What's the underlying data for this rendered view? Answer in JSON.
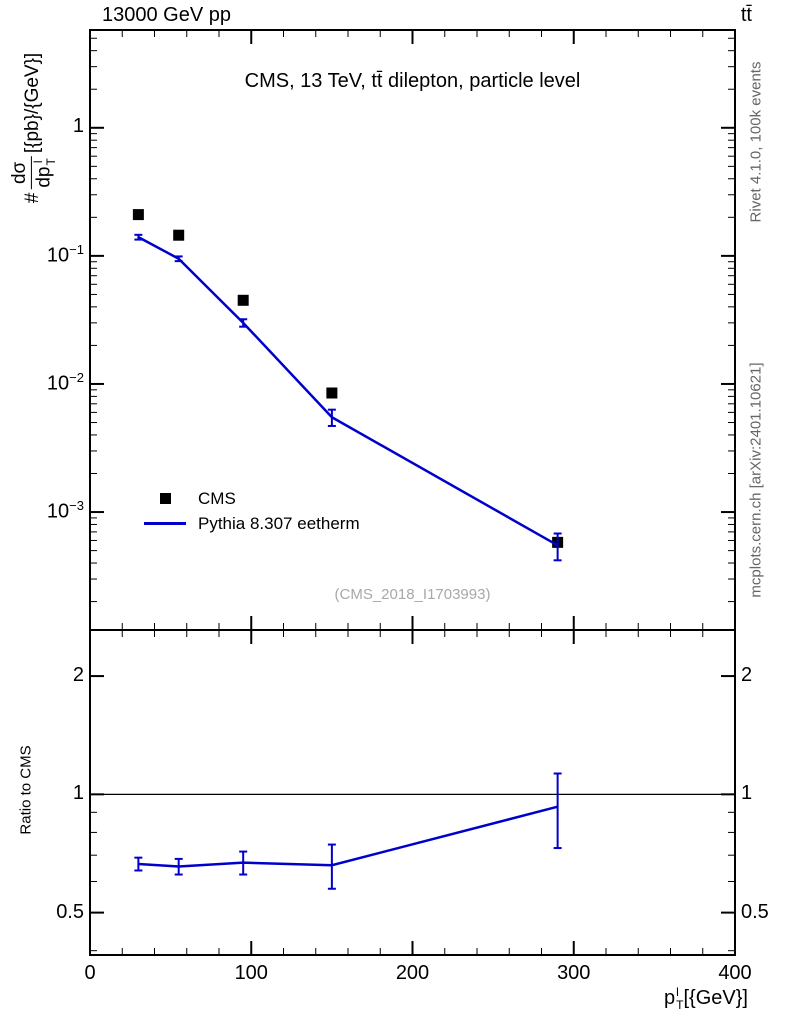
{
  "header": {
    "left": "13000 GeV pp",
    "right": "tt̄"
  },
  "title": "CMS, 13 TeV, tt̄ dilepton, particle level",
  "watermark": "(CMS_2018_I1703993)",
  "side_notes": {
    "top_right": "Rivet 4.1.0, 100k events",
    "bottom_right": "mcplots.cern.ch [arXiv:2401.10621]"
  },
  "axes": {
    "y_label": {
      "prefix": "#",
      "numerator": "dσ",
      "denominator_base": "dp",
      "denominator_sup": "l",
      "denominator_sub": "T",
      "units": "[{pb}/{GeV}]"
    },
    "x_label": {
      "base": "p",
      "sup": "l",
      "sub": "T",
      "units": "[{GeV}]"
    },
    "ratio_label": "Ratio to CMS"
  },
  "legend": [
    {
      "label": "CMS",
      "marker": "square",
      "color": "#000000"
    },
    {
      "label": "Pythia 8.307 eetherm",
      "marker": "line",
      "color": "#0000cc"
    }
  ],
  "chart_data": {
    "type": "line",
    "title": "CMS, 13 TeV, ttbar dilepton, particle level",
    "xlabel": "p_T^l [GeV]",
    "ylabel": "# dsigma/dp_T^l [pb/GeV]",
    "legend_position": "middle-left",
    "grid": false,
    "panels": [
      {
        "name": "main",
        "y_scale": "log",
        "xlim": [
          0,
          400
        ],
        "ylim": [
          0.00012,
          5.8
        ],
        "x_ticks": [
          0,
          100,
          200,
          300,
          400
        ],
        "x_minor_step": 20,
        "y_ticks": [
          1,
          0.1,
          0.01,
          0.001
        ],
        "series": [
          {
            "name": "CMS",
            "type": "scatter",
            "marker": "square",
            "color": "#000000",
            "x": [
              30,
              55,
              95,
              150,
              290
            ],
            "y": [
              0.21,
              0.145,
              0.045,
              0.0085,
              0.00058
            ]
          },
          {
            "name": "Pythia 8.307 eetherm",
            "type": "line",
            "color": "#0000cc",
            "x": [
              30,
              55,
              95,
              150,
              290
            ],
            "y": [
              0.14,
              0.095,
              0.03,
              0.0055,
              0.00055
            ],
            "yerr": [
              0.006,
              0.004,
              0.002,
              0.0008,
              0.00013
            ]
          }
        ]
      },
      {
        "name": "ratio",
        "ylabel": "Ratio to CMS",
        "y_scale": "log",
        "xlim": [
          0,
          400
        ],
        "ylim": [
          0.39,
          2.62
        ],
        "x_ticks": [
          0,
          100,
          200,
          300,
          400
        ],
        "x_minor_step": 20,
        "y_ticks": [
          0.5,
          1,
          2
        ],
        "y_minor_ticks": [
          0.4,
          0.6,
          0.7,
          0.8,
          0.9
        ],
        "reference_line": 1,
        "series": [
          {
            "name": "Pythia 8.307 eetherm / CMS",
            "type": "line",
            "color": "#0000cc",
            "x": [
              30,
              55,
              95,
              150,
              290
            ],
            "y": [
              0.665,
              0.655,
              0.67,
              0.66,
              0.93
            ],
            "yerr": [
              0.025,
              0.03,
              0.045,
              0.085,
              0.2
            ]
          }
        ]
      }
    ]
  }
}
